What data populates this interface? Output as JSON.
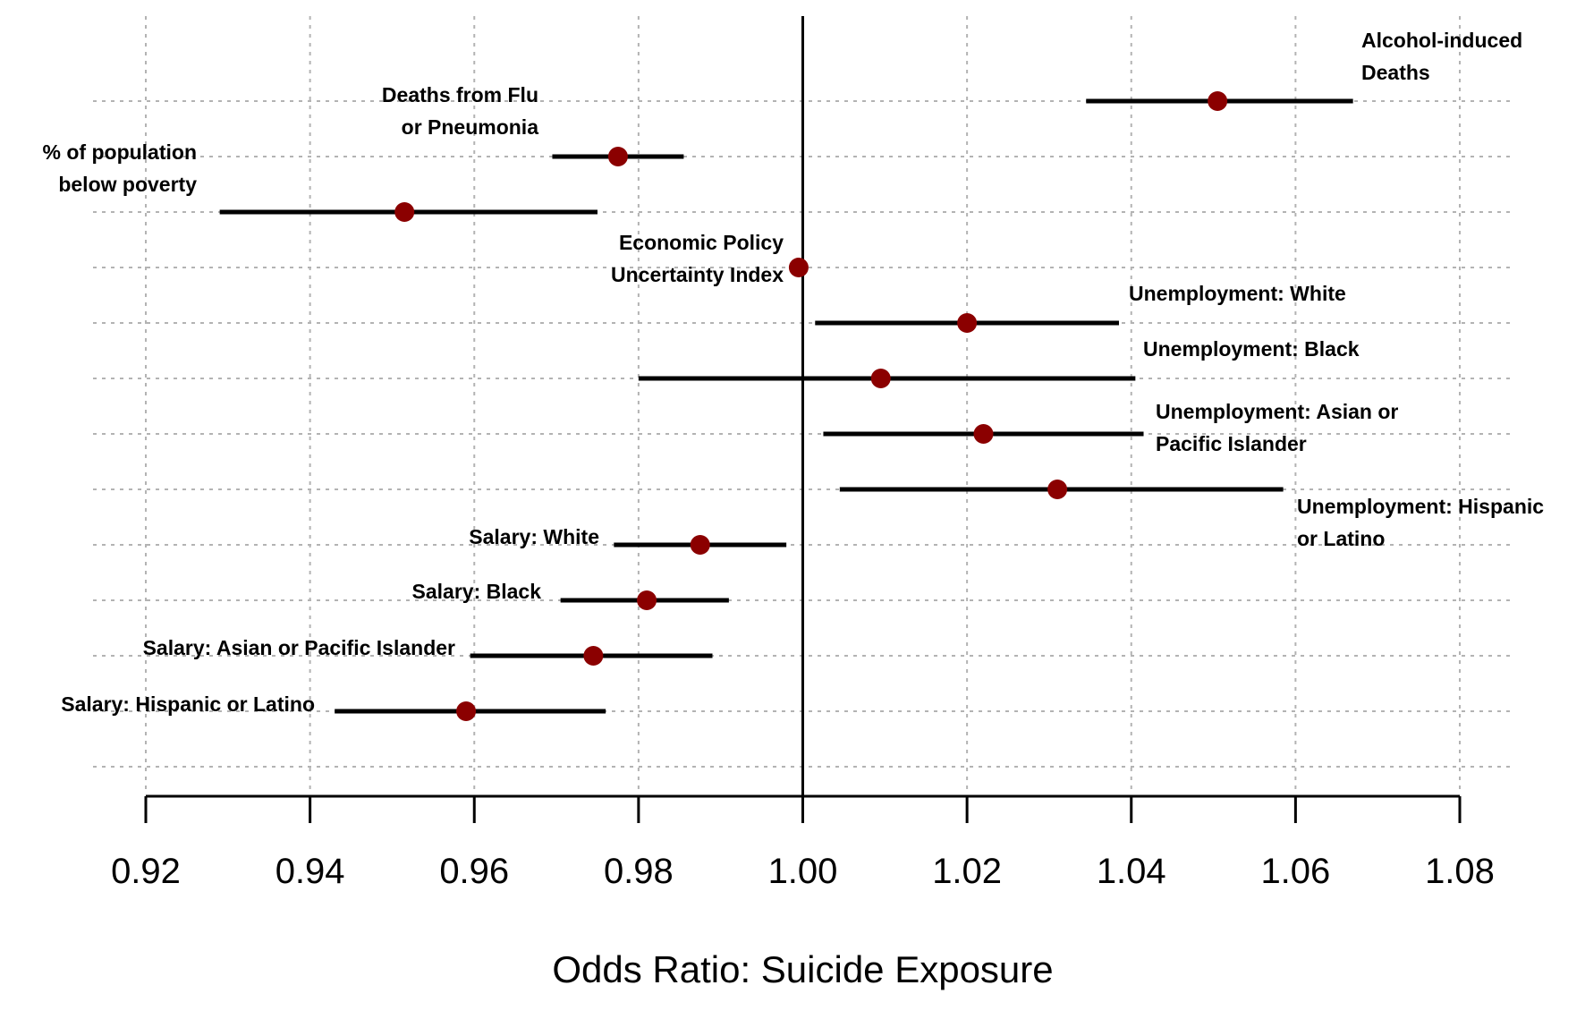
{
  "chart_data": {
    "type": "forest",
    "xlabel": "Odds Ratio: Suicide Exposure",
    "xlim": [
      0.92,
      1.08
    ],
    "xticks": [
      "0.92",
      "0.94",
      "0.96",
      "0.98",
      "1.00",
      "1.02",
      "1.04",
      "1.06",
      "1.08"
    ],
    "reference_line": 1.0,
    "grid": true,
    "point_color": "#8b0000",
    "points": [
      {
        "label": [
          "Alcohol-induced",
          "Deaths"
        ],
        "or": 1.0505,
        "lo": 1.0345,
        "hi": 1.067
      },
      {
        "label": [
          "Deaths from Flu",
          "or Pneumonia"
        ],
        "or": 0.9775,
        "lo": 0.9695,
        "hi": 0.9855
      },
      {
        "label": [
          "% of population",
          "below poverty"
        ],
        "or": 0.9515,
        "lo": 0.929,
        "hi": 0.975
      },
      {
        "label": [
          "Economic Policy",
          "Uncertainty Index"
        ],
        "or": 0.9995,
        "lo": 0.9995,
        "hi": 0.9995
      },
      {
        "label": [
          "Unemployment: White"
        ],
        "or": 1.02,
        "lo": 1.0015,
        "hi": 1.0385
      },
      {
        "label": [
          "Unemployment: Black"
        ],
        "or": 1.0095,
        "lo": 0.98,
        "hi": 1.0405
      },
      {
        "label": [
          "Unemployment: Asian or",
          "Pacific Islander"
        ],
        "or": 1.022,
        "lo": 1.0025,
        "hi": 1.0415
      },
      {
        "label": [
          "Unemployment: Hispanic",
          "or Latino"
        ],
        "or": 1.031,
        "lo": 1.0045,
        "hi": 1.0585
      },
      {
        "label": [
          "Salary: White"
        ],
        "or": 0.9875,
        "lo": 0.977,
        "hi": 0.998
      },
      {
        "label": [
          "Salary: Black"
        ],
        "or": 0.981,
        "lo": 0.9705,
        "hi": 0.991
      },
      {
        "label": [
          "Salary: Asian or Pacific Islander"
        ],
        "or": 0.9745,
        "lo": 0.9595,
        "hi": 0.989
      },
      {
        "label": [
          "Salary: Hispanic or Latino"
        ],
        "or": 0.959,
        "lo": 0.943,
        "hi": 0.976
      }
    ]
  }
}
